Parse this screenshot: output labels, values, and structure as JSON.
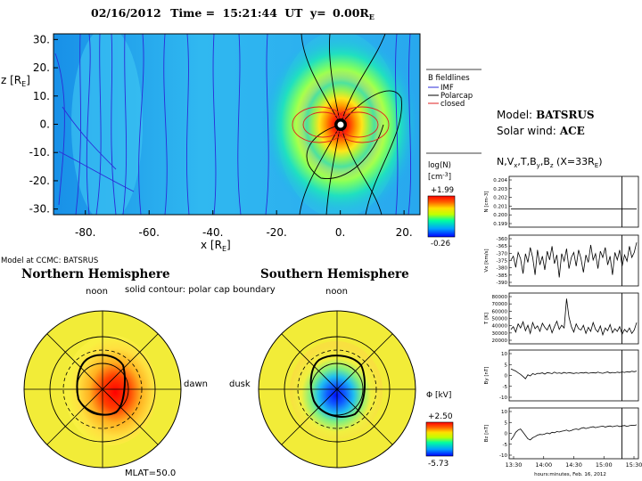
{
  "header": {
    "date": "02/16/2012",
    "time_label": "Time =",
    "time": "15:21:44",
    "ut": "UT",
    "y_label": "y=",
    "y_value": "0.00R",
    "y_sub": "E"
  },
  "main_plot": {
    "xlabel": "x [R",
    "xlabel_sub": "E",
    "ylabel": "z [R",
    "ylabel_sub": "E",
    "x_ticks": [
      "-80.",
      "-60.",
      "-40.",
      "-20.",
      "0.",
      "20."
    ],
    "y_ticks": [
      "30.",
      "20.",
      "10.",
      "0.",
      "-10.",
      "-20.",
      "-30."
    ],
    "xlim": [
      -90,
      25
    ],
    "ylim": [
      -32,
      32
    ]
  },
  "legend": {
    "title": "B fieldlines",
    "items": [
      {
        "label": "IMF",
        "color": "#2b2bd8"
      },
      {
        "label": "Polarcap",
        "color": "#000000"
      },
      {
        "label": "closed",
        "color": "#e02020"
      }
    ]
  },
  "colorbar_main": {
    "label": "log(N)",
    "unit": "[cm",
    "unit_sup": "-3",
    "max": "+1.99",
    "min": "-0.26"
  },
  "model_info": {
    "model_label": "Model:",
    "model_value": "BATSRUS",
    "sw_label": "Solar wind:",
    "sw_value": "ACE",
    "params_title": "N,V",
    "params_sub1": "x",
    "params_mid": ",T,B",
    "params_sub2": "y",
    "params_mid2": ",B",
    "params_sub3": "z",
    "params_end": " (X=33R",
    "params_sub4": "E",
    "params_close": ")"
  },
  "footer_model": "Model at CCMC: BATSRUS",
  "hemispheres": {
    "north_title": "Northern Hemisphere",
    "south_title": "Southern Hemisphere",
    "subtitle": "solid contour: polar cap boundary",
    "north_noon": "noon",
    "south_noon": "noon",
    "dawn": "dawn",
    "dusk": "dusk",
    "mlat": "MLAT=50.0"
  },
  "colorbar_phi": {
    "label": "Φ [kV]",
    "max": "+2.50",
    "min": "-5.73"
  },
  "chart_data": [
    {
      "type": "line",
      "panel": "N",
      "ylabel": "N [cm-3]",
      "ylim": [
        0.198,
        0.204
      ],
      "y_ticks": [
        "0.204",
        "0.203",
        "0.202",
        "0.201",
        "0.200",
        "0.199"
      ],
      "values": [
        0.2,
        0.2
      ]
    },
    {
      "type": "line",
      "panel": "Vx",
      "ylabel": "Vx [km/s]",
      "ylim": [
        -392,
        -357
      ],
      "y_ticks": [
        "-360",
        "-365",
        "-370",
        "-375",
        "-380",
        "-385",
        "-390"
      ],
      "values": [
        -374,
        -371,
        -380,
        -368,
        -373,
        -385,
        -369,
        -376,
        -364,
        -372,
        -386,
        -366,
        -378,
        -371,
        -382,
        -367,
        -374,
        -363,
        -377,
        -370,
        -388,
        -369,
        -375,
        -365,
        -381,
        -372,
        -368,
        -379,
        -366,
        -373,
        -384,
        -370,
        -376,
        -362,
        -374,
        -369,
        -381,
        -367,
        -372,
        -364,
        -378,
        -371,
        -386,
        -368,
        -374,
        -366,
        -379,
        -370,
        -375,
        -363,
        -372,
        -368,
        -360
      ]
    },
    {
      "type": "line",
      "panel": "T",
      "ylabel": "T [K]",
      "ylim": [
        18000,
        82000
      ],
      "y_ticks": [
        "80000",
        "70000",
        "60000",
        "50000",
        "40000",
        "30000",
        "20000"
      ],
      "values": [
        34000,
        38000,
        30000,
        42000,
        36000,
        45000,
        32000,
        40000,
        28000,
        44000,
        35000,
        39000,
        31000,
        43000,
        37000,
        33000,
        41000,
        29000,
        38000,
        46000,
        34000,
        40000,
        36000,
        79000,
        52000,
        38000,
        30000,
        42000,
        35000,
        33000,
        40000,
        28000,
        37000,
        31000,
        44000,
        34000,
        30000,
        39000,
        26000,
        36000,
        32000,
        41000,
        29000,
        35000,
        31000,
        38000,
        27000,
        34000,
        30000,
        36000,
        28000,
        33000,
        44000
      ]
    },
    {
      "type": "line",
      "panel": "By",
      "ylabel": "By [nT]",
      "ylim": [
        -10,
        10
      ],
      "y_ticks": [
        "10",
        "5",
        "0",
        "-5",
        "-10"
      ],
      "values": [
        3,
        2.5,
        2,
        1.2,
        0.5,
        -0.5,
        -1.5,
        0.3,
        -0.2,
        0.8,
        0.4,
        1.0,
        0.9,
        1.2,
        0.6,
        1.3,
        1.1,
        0.8,
        1.5,
        1.0,
        1.2,
        0.9,
        1.4,
        1.0,
        1.3,
        1.1,
        0.9,
        1.2,
        1.0,
        1.3,
        1.1,
        1.4,
        1.0,
        1.2,
        1.3,
        1.1,
        1.5,
        1.2,
        1.0,
        1.3,
        1.6,
        1.1,
        1.4,
        1.2,
        1.5,
        1.3,
        1.6,
        1.4,
        1.7,
        1.5,
        1.9,
        1.7,
        2.0
      ]
    },
    {
      "type": "line",
      "panel": "Bz",
      "ylabel": "Bz [nT]",
      "ylim": [
        -10,
        10
      ],
      "y_ticks": [
        "10",
        "5",
        "0",
        "-5",
        "-10"
      ],
      "x_ticks": [
        "13:30",
        "14:00",
        "14:30",
        "15:00",
        "15:30"
      ],
      "xlabel": "hours:minutes, Feb. 16, 2012",
      "values": [
        -3,
        -1.5,
        0.5,
        1.5,
        2.0,
        0.5,
        -1.0,
        -2.5,
        -3.0,
        -2.0,
        -1.5,
        -0.8,
        -0.5,
        -0.6,
        -0.3,
        0.2,
        -0.2,
        0.5,
        0.3,
        0.8,
        0.6,
        1.0,
        1.2,
        1.5,
        1.0,
        1.3,
        1.8,
        2.0,
        1.7,
        2.3,
        2.6,
        2.2,
        2.5,
        2.8,
        3.0,
        2.6,
        2.9,
        3.1,
        3.3,
        2.9,
        3.2,
        3.4,
        3.0,
        3.3,
        3.5,
        3.1,
        3.4,
        3.6,
        3.2,
        3.5,
        3.7,
        3.6,
        3.9
      ]
    }
  ]
}
